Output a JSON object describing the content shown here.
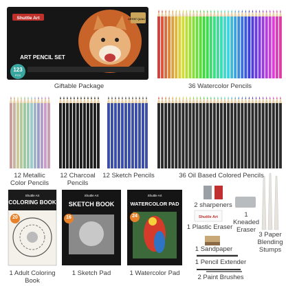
{
  "box": {
    "brand": "Shuttle Art",
    "title": "ART PENCIL SET",
    "badge": "ARTIST QUALITY",
    "count": "123",
    "count_unit": "PCS",
    "label": "Giftable Package"
  },
  "pencil_groups": [
    {
      "label": "36 Watercolor Pencils"
    },
    {
      "label": "12 Metallic Color Pencils"
    },
    {
      "label": "12 Charcoal Pencils"
    },
    {
      "label": "12 Sketch Pencils"
    },
    {
      "label": "36 Oil Based Colored Pencils"
    }
  ],
  "books": [
    {
      "brand": "Shuttle Art",
      "title": "COLORING BOOK",
      "sheets": "20",
      "label": "1 Adult Coloring Book"
    },
    {
      "brand": "Shuttle Art",
      "title": "SKETCH BOOK",
      "sheets": "16",
      "label": "1 Sketch Pad"
    },
    {
      "brand": "Shuttle Art",
      "title": "WATERCOLOR PAD",
      "sheets": "24",
      "label": "1 Watercolor Pad"
    }
  ],
  "accessories": {
    "sharpeners": "2 sharpeners",
    "kneaded_eraser": "1 Kneaded Eraser",
    "plastic_eraser": "1 Plastic Eraser",
    "eraser_brand": "Shuttle Art",
    "stumps": "3 Paper Blending Stumps",
    "sandpaper": "1 Sandpaper",
    "extender": "1 Pencil Extender",
    "brushes": "2 Paint Brushes"
  }
}
